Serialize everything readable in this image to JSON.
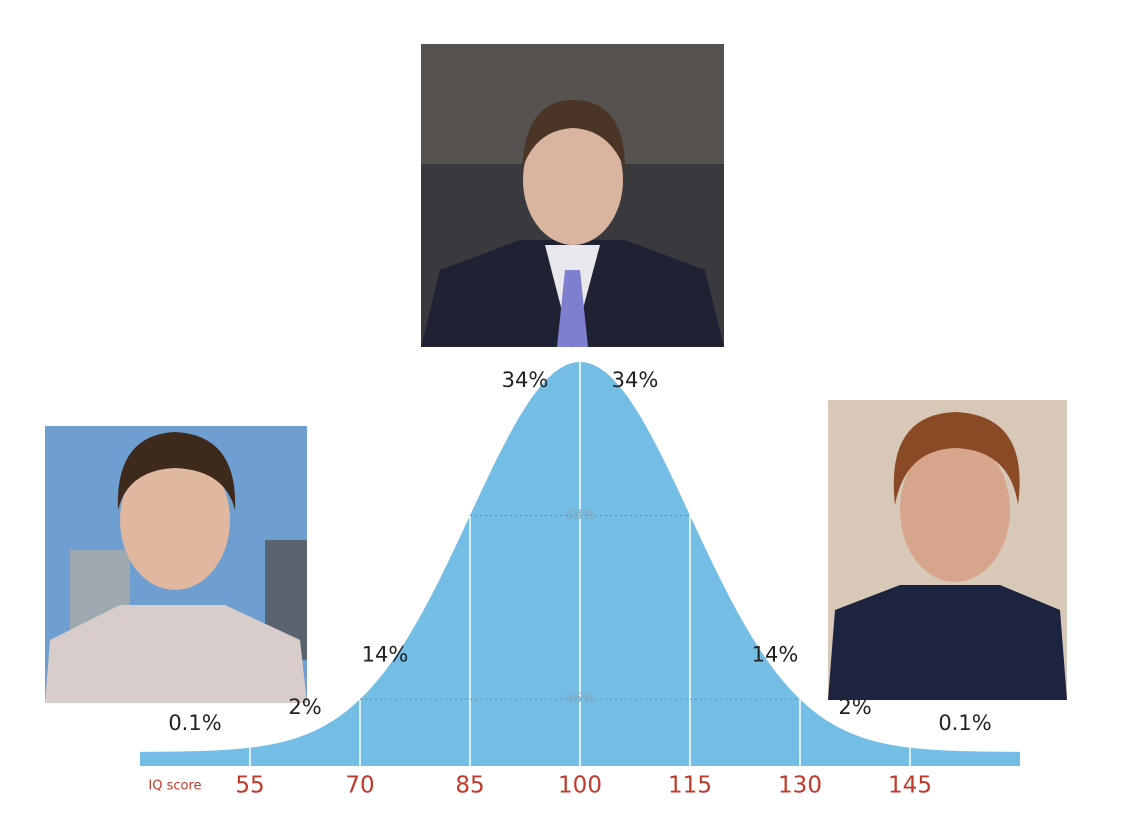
{
  "chart_data": {
    "type": "bell",
    "x_label": "IQ score",
    "xlim": [
      40,
      160
    ],
    "xticks": [
      55,
      70,
      85,
      100,
      115,
      130,
      145
    ],
    "color": "#74bde5",
    "values": [
      0.1,
      2,
      14,
      34,
      34,
      14,
      2,
      0.1
    ],
    "value_labels": [
      "0.1%",
      "2%",
      "14%",
      "34%",
      "34%",
      "14%",
      "2%",
      "0.1%"
    ],
    "intervals": [
      {
        "value": 68,
        "label": "68%",
        "range": [
          85,
          115
        ]
      },
      {
        "value": 95,
        "label": "95%",
        "range": [
          70,
          130
        ]
      }
    ]
  }
}
